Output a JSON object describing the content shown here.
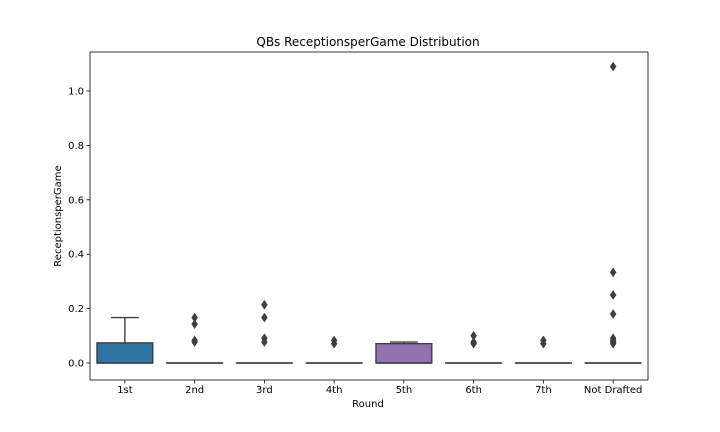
{
  "chart_data": {
    "type": "box",
    "title": "QBs ReceptionsperGame Distribution",
    "xlabel": "Round",
    "ylabel": "ReceptionsperGame",
    "ylim": [
      -0.04,
      1.14
    ],
    "yticks": [
      0.0,
      0.2,
      0.4,
      0.6,
      0.8,
      1.0
    ],
    "ytick_labels": [
      "0.0",
      "0.2",
      "0.4",
      "0.6",
      "0.8",
      "1.0"
    ],
    "grid": false,
    "categories": [
      "1st",
      "2nd",
      "3rd",
      "4th",
      "5th",
      "6th",
      "7th",
      "Not Drafted"
    ],
    "boxes": [
      {
        "category": "1st",
        "q1": 0.0,
        "median": 0.0,
        "q3": 0.074,
        "whisker_low": 0.0,
        "whisker_high": 0.167,
        "outliers": [],
        "color": "#3274a1"
      },
      {
        "category": "2nd",
        "q1": 0.0,
        "median": 0.0,
        "q3": 0.0,
        "whisker_low": 0.0,
        "whisker_high": 0.0,
        "outliers": [
          0.083,
          0.077,
          0.143,
          0.167
        ],
        "color": "#e1812c"
      },
      {
        "category": "3rd",
        "q1": 0.0,
        "median": 0.0,
        "q3": 0.0,
        "whisker_low": 0.0,
        "whisker_high": 0.0,
        "outliers": [
          0.077,
          0.091,
          0.167,
          0.214
        ],
        "color": "#3a923a"
      },
      {
        "category": "4th",
        "q1": 0.0,
        "median": 0.0,
        "q3": 0.0,
        "whisker_low": 0.0,
        "whisker_high": 0.0,
        "outliers": [
          0.071,
          0.083
        ],
        "color": "#c03d3e"
      },
      {
        "category": "5th",
        "q1": 0.0,
        "median": 0.0,
        "q3": 0.071,
        "whisker_low": 0.0,
        "whisker_high": 0.077,
        "outliers": [],
        "color": "#9372b2"
      },
      {
        "category": "6th",
        "q1": 0.0,
        "median": 0.0,
        "q3": 0.0,
        "whisker_low": 0.0,
        "whisker_high": 0.0,
        "outliers": [
          0.071,
          0.077,
          0.1
        ],
        "color": "#845b53"
      },
      {
        "category": "7th",
        "q1": 0.0,
        "median": 0.0,
        "q3": 0.0,
        "whisker_low": 0.0,
        "whisker_high": 0.0,
        "outliers": [
          0.071,
          0.083
        ],
        "color": "#d684bd"
      },
      {
        "category": "Not Drafted",
        "q1": 0.0,
        "median": 0.0,
        "q3": 0.0,
        "whisker_low": 0.0,
        "whisker_high": 0.0,
        "outliers": [
          0.071,
          0.077,
          0.083,
          0.091,
          0.18,
          0.25,
          0.333,
          1.09
        ],
        "color": "#7f7f7f"
      }
    ]
  }
}
